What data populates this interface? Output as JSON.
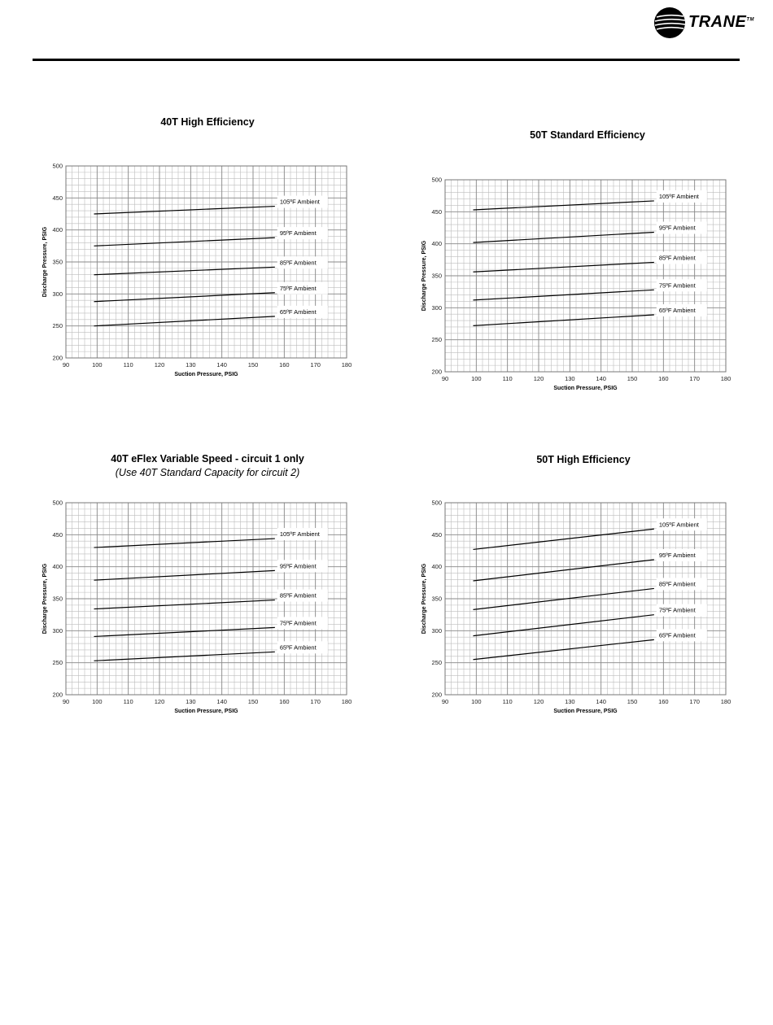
{
  "header": {
    "brand": "TRANE",
    "brand_mark": "TM"
  },
  "chart_data": [
    {
      "type": "line",
      "title": "40T High Efficiency",
      "subtitle": "",
      "xlabel": "Suction Pressure, PSIG",
      "ylabel": "Discharge Pressure, PSIG",
      "xlim": [
        90,
        180
      ],
      "ylim": [
        200,
        500
      ],
      "xticks": [
        90,
        100,
        110,
        120,
        130,
        140,
        150,
        160,
        170,
        180
      ],
      "yticks": [
        200,
        250,
        300,
        350,
        400,
        450,
        500
      ],
      "grid": true,
      "series": [
        {
          "name": "65ºF Ambient",
          "x": [
            99,
            157
          ],
          "y": [
            250,
            265
          ]
        },
        {
          "name": "75ºF Ambient",
          "x": [
            99,
            157
          ],
          "y": [
            288,
            302
          ]
        },
        {
          "name": "85ºF Ambient",
          "x": [
            99,
            157
          ],
          "y": [
            330,
            342
          ]
        },
        {
          "name": "95ºF Ambient",
          "x": [
            99,
            157
          ],
          "y": [
            375,
            388
          ]
        },
        {
          "name": "105ºF Ambient",
          "x": [
            99,
            157
          ],
          "y": [
            425,
            437
          ]
        }
      ]
    },
    {
      "type": "line",
      "title": "50T Standard Efficiency",
      "subtitle": "",
      "xlabel": "Suction Pressure, PSIG",
      "ylabel": "Discharge Pressure, PSIG",
      "xlim": [
        90,
        180
      ],
      "ylim": [
        200,
        500
      ],
      "xticks": [
        90,
        100,
        110,
        120,
        130,
        140,
        150,
        160,
        170,
        180
      ],
      "yticks": [
        200,
        250,
        300,
        350,
        400,
        450,
        500
      ],
      "grid": true,
      "series": [
        {
          "name": "65ºF Ambient",
          "x": [
            99,
            157
          ],
          "y": [
            272,
            289
          ]
        },
        {
          "name": "75ºF Ambient",
          "x": [
            99,
            157
          ],
          "y": [
            312,
            328
          ]
        },
        {
          "name": "85ºF Ambient",
          "x": [
            99,
            157
          ],
          "y": [
            356,
            371
          ]
        },
        {
          "name": "95ºF Ambient",
          "x": [
            99,
            157
          ],
          "y": [
            402,
            418
          ]
        },
        {
          "name": "105ºF Ambient",
          "x": [
            99,
            157
          ],
          "y": [
            453,
            467
          ]
        }
      ]
    },
    {
      "type": "line",
      "title": "40T eFlex Variable Speed - circuit 1 only",
      "subtitle": "(Use 40T Standard Capacity for circuit 2)",
      "xlabel": "Suction Pressure, PSIG",
      "ylabel": "Discharge Pressure, PSIG",
      "xlim": [
        90,
        180
      ],
      "ylim": [
        200,
        500
      ],
      "xticks": [
        90,
        100,
        110,
        120,
        130,
        140,
        150,
        160,
        170,
        180
      ],
      "yticks": [
        200,
        250,
        300,
        350,
        400,
        450,
        500
      ],
      "grid": true,
      "series": [
        {
          "name": "65ºF Ambient",
          "x": [
            99,
            157
          ],
          "y": [
            253,
            267
          ]
        },
        {
          "name": "75ºF Ambient",
          "x": [
            99,
            157
          ],
          "y": [
            291,
            305
          ]
        },
        {
          "name": "85ºF Ambient",
          "x": [
            99,
            157
          ],
          "y": [
            334,
            348
          ]
        },
        {
          "name": "95ºF Ambient",
          "x": [
            99,
            157
          ],
          "y": [
            379,
            394
          ]
        },
        {
          "name": "105ºF Ambient",
          "x": [
            99,
            157
          ],
          "y": [
            430,
            444
          ]
        }
      ]
    },
    {
      "type": "line",
      "title": "50T High Efficiency",
      "subtitle": "",
      "xlabel": "Suction Pressure, PSIG",
      "ylabel": "Discharge Pressure, PSIG",
      "xlim": [
        90,
        180
      ],
      "ylim": [
        200,
        500
      ],
      "xticks": [
        90,
        100,
        110,
        120,
        130,
        140,
        150,
        160,
        170,
        180
      ],
      "yticks": [
        200,
        250,
        300,
        350,
        400,
        450,
        500
      ],
      "grid": true,
      "series": [
        {
          "name": "65ºF Ambient",
          "x": [
            99,
            157
          ],
          "y": [
            255,
            286
          ]
        },
        {
          "name": "75ºF Ambient",
          "x": [
            99,
            157
          ],
          "y": [
            292,
            325
          ]
        },
        {
          "name": "85ºF Ambient",
          "x": [
            99,
            157
          ],
          "y": [
            333,
            366
          ]
        },
        {
          "name": "95ºF Ambient",
          "x": [
            99,
            157
          ],
          "y": [
            378,
            411
          ]
        },
        {
          "name": "105ºF Ambient",
          "x": [
            99,
            157
          ],
          "y": [
            427,
            459
          ]
        }
      ]
    }
  ]
}
